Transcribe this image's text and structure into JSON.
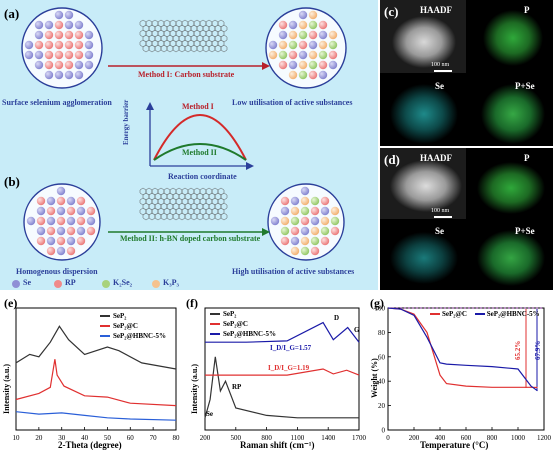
{
  "panels": {
    "a": "(a)",
    "b": "(b)",
    "c": "(c)",
    "d": "(d)",
    "e": "(e)",
    "f": "(f)",
    "g": "(g)"
  },
  "schematic": {
    "method1_label": "Method I: Carbon substrate",
    "method2_label": "Method II: h-BN doped carbon substrate",
    "caption_a_left": "Surface selenium agglomeration",
    "caption_a_right": "Low utilisation of active substances",
    "caption_b_left": "Homogenous dispersion",
    "caption_b_right": "High utilisation of active substances",
    "energy_ylabel": "Energy barrier",
    "energy_xlabel": "Reaction coordinate",
    "energy_curve1": "Method I",
    "energy_curve2": "Method II",
    "legend": [
      {
        "label": "Se",
        "color": "#8f8fd6"
      },
      {
        "label": "RP",
        "color": "#f08a8a"
      },
      {
        "label": "K₂Se₂",
        "color": "#a8d27c"
      },
      {
        "label": "K₃P₃",
        "color": "#f5c28e"
      }
    ]
  },
  "micro": {
    "haadf": "HAADF",
    "p": "P",
    "se": "Se",
    "pse": "P+Se",
    "scalebar": "100 nm"
  },
  "panel_e": {
    "xlabel": "2-Theta (degree)",
    "ylabel": "Intensity (a.u.)",
    "xticks": [
      "10",
      "20",
      "30",
      "40",
      "50",
      "60",
      "70",
      "80"
    ],
    "legend": [
      {
        "label": "SeP₂",
        "color": "#333333"
      },
      {
        "label": "SeP₂@C",
        "color": "#e03030"
      },
      {
        "label": "SeP₂@HBNC-5%",
        "color": "#2a5fd8"
      }
    ]
  },
  "panel_f": {
    "xlabel": "Raman shift (cm⁻¹)",
    "ylabel": "Intensity (a.u.)",
    "xticks": [
      "200",
      "500",
      "800",
      "1100",
      "1400",
      "1700"
    ],
    "legend": [
      {
        "label": "SeP₂",
        "color": "#333333"
      },
      {
        "label": "SeP₂@C",
        "color": "#e03030"
      },
      {
        "label": "SeP₂@HBNC-5%",
        "color": "#1a1aa8"
      }
    ],
    "ratio_blue": "I_D/I_G=1.57",
    "ratio_red": "I_D/I_G=1.19",
    "peak_d": "D",
    "peak_g": "G",
    "peak_se": "Se",
    "peak_rp": "RP"
  },
  "panel_g": {
    "xlabel": "Temperature (°C)",
    "ylabel": "Weight (%)",
    "xticks": [
      "0",
      "200",
      "400",
      "600",
      "800",
      "1000",
      "1200"
    ],
    "yticks": [
      "0",
      "20",
      "40",
      "60",
      "80",
      "100"
    ],
    "legend": [
      {
        "label": "SeP₂@C",
        "color": "#e03030"
      },
      {
        "label": "SeP₂@HBNC-5%",
        "color": "#1a1aa8"
      }
    ],
    "loss_red": "65.2%",
    "loss_blue": "67.9%"
  },
  "chart_data": [
    {
      "type": "line",
      "xlabel": "2-Theta (degree)",
      "ylabel": "Intensity (a.u.)",
      "xlim": [
        10,
        80
      ],
      "series": [
        {
          "name": "SeP₂",
          "x": [
            10,
            16,
            20,
            25,
            29,
            33,
            40,
            50,
            55,
            65,
            80
          ],
          "y": [
            0.55,
            0.62,
            0.6,
            0.72,
            0.85,
            0.74,
            0.62,
            0.68,
            0.65,
            0.55,
            0.5
          ]
        },
        {
          "name": "SeP₂@C",
          "x": [
            10,
            20,
            25,
            27,
            28,
            31,
            40,
            50,
            60,
            80
          ],
          "y": [
            0.25,
            0.3,
            0.35,
            0.58,
            0.45,
            0.36,
            0.28,
            0.27,
            0.22,
            0.2
          ]
        },
        {
          "name": "SeP₂@HBNC-5%",
          "x": [
            10,
            20,
            30,
            40,
            50,
            60,
            80
          ],
          "y": [
            0.15,
            0.13,
            0.14,
            0.12,
            0.1,
            0.09,
            0.08
          ]
        }
      ]
    },
    {
      "type": "line",
      "xlabel": "Raman shift (cm⁻¹)",
      "ylabel": "Intensity (a.u.)",
      "xlim": [
        200,
        1700
      ],
      "series": [
        {
          "name": "SeP₂",
          "x": [
            200,
            250,
            300,
            350,
            400,
            500,
            800,
            1100,
            1700
          ],
          "y": [
            0.1,
            0.25,
            0.6,
            0.32,
            0.4,
            0.18,
            0.12,
            0.1,
            0.1
          ]
        },
        {
          "name": "SeP₂@C",
          "x": [
            200,
            600,
            1000,
            1350,
            1450,
            1580,
            1700
          ],
          "y": [
            0.45,
            0.45,
            0.45,
            0.5,
            0.46,
            0.49,
            0.45
          ]
        },
        {
          "name": "SeP₂@HBNC-5%",
          "x": [
            200,
            600,
            1000,
            1350,
            1450,
            1590,
            1700
          ],
          "y": [
            0.72,
            0.72,
            0.73,
            0.88,
            0.74,
            0.84,
            0.72
          ]
        }
      ],
      "annotations": [
        "I_D/I_G=1.57",
        "I_D/I_G=1.19",
        "D",
        "G",
        "Se",
        "RP"
      ]
    },
    {
      "type": "line",
      "xlabel": "Temperature (°C)",
      "ylabel": "Weight (%)",
      "xlim": [
        0,
        1200
      ],
      "ylim": [
        0,
        100
      ],
      "series": [
        {
          "name": "SeP₂@C",
          "x": [
            0,
            100,
            200,
            300,
            400,
            450,
            600,
            800,
            1000,
            1100,
            1150
          ],
          "y": [
            100,
            99,
            95,
            80,
            45,
            38,
            36,
            35,
            35,
            35,
            34.8
          ]
        },
        {
          "name": "SeP₂@HBNC-5%",
          "x": [
            0,
            100,
            200,
            300,
            400,
            450,
            600,
            800,
            1000,
            1100,
            1150
          ],
          "y": [
            100,
            99,
            94,
            76,
            55,
            54,
            53,
            52,
            50,
            36,
            32.1
          ]
        }
      ],
      "annotations": [
        "65.2%",
        "67.9%"
      ]
    }
  ]
}
